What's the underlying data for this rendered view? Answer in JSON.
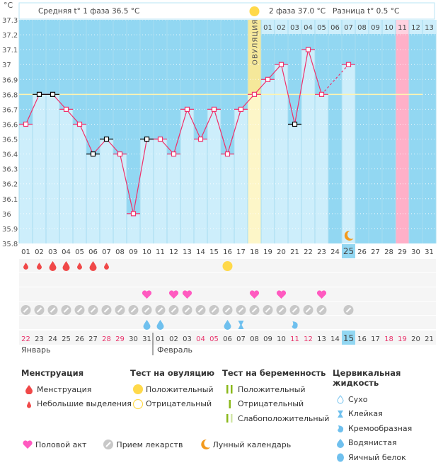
{
  "header": {
    "unit": "°C",
    "phase1": "Средняя t° 1 фаза 36.5 °C",
    "phase2": "2 фаза 37.0 °C",
    "diff": "Разница t° 0.5 °C",
    "ovulation_label": "ОВУЛЯЦИЯ"
  },
  "chart_data": {
    "type": "line",
    "title": "",
    "xlabel": "",
    "ylabel": "°C",
    "ylim": [
      35.8,
      37.3
    ],
    "yticks": [
      "35.8",
      "35.9",
      "36",
      "36.1",
      "36.2",
      "36.3",
      "36.4",
      "36.5",
      "36.6",
      "36.7",
      "36.8",
      "36.9",
      "37",
      "37.1",
      "37.2",
      "37.3"
    ],
    "cycle_days": [
      "01",
      "02",
      "03",
      "04",
      "05",
      "06",
      "07",
      "08",
      "09",
      "10",
      "11",
      "12",
      "13",
      "14",
      "15",
      "16",
      "17",
      "18",
      "19",
      "20",
      "21",
      "22",
      "23",
      "24",
      "25",
      "26",
      "27",
      "28",
      "29",
      "30",
      "31"
    ],
    "temperatures": [
      36.6,
      36.8,
      36.8,
      36.7,
      36.6,
      36.4,
      36.5,
      36.4,
      36.0,
      36.5,
      36.5,
      36.4,
      36.7,
      36.5,
      36.7,
      36.4,
      36.7,
      36.8,
      36.9,
      37.0,
      36.6,
      37.1,
      36.8,
      null,
      37.0
    ],
    "marked_black_days": [
      2,
      3,
      6,
      7,
      10,
      21
    ],
    "dashed_segment": [
      23,
      25
    ],
    "coverline": 36.8,
    "ovulation_day": 18,
    "phase2_days": [
      "01",
      "02",
      "03",
      "04",
      "05",
      "06",
      "07",
      "08",
      "09",
      "10",
      "11",
      "12",
      "13"
    ],
    "highlight_day": 29,
    "today_day": 25,
    "moon_day": 25
  },
  "calendar": {
    "dates": [
      "22",
      "23",
      "24",
      "25",
      "26",
      "27",
      "28",
      "29",
      "30",
      "31",
      "01",
      "02",
      "03",
      "04",
      "05",
      "06",
      "07",
      "08",
      "09",
      "10",
      "11",
      "12",
      "13",
      "14",
      "15",
      "16",
      "17",
      "18",
      "19",
      "20",
      "21"
    ],
    "weekend_indices": [
      0,
      6,
      7,
      13,
      14,
      20,
      21,
      27,
      28
    ],
    "today_index": 24,
    "month1": "Январь",
    "month2": "Февраль",
    "month_split_index": 10
  },
  "rows": {
    "menstruation": [
      [
        "s",
        0
      ],
      [
        "s",
        1
      ],
      [
        "l",
        2
      ],
      [
        "l",
        3
      ],
      [
        "s",
        4
      ],
      [
        "l",
        5
      ],
      [
        "s",
        6
      ]
    ],
    "ovulation_test_positive": [
      15
    ],
    "intercourse": [
      9,
      11,
      12,
      17,
      19,
      22
    ],
    "medication": [
      0,
      1,
      2,
      3,
      4,
      5,
      6,
      7,
      8,
      9,
      10,
      11,
      12,
      13,
      14,
      15,
      16,
      17,
      18,
      19,
      20,
      21,
      22,
      24
    ],
    "fluid": [
      [
        "water",
        9
      ],
      [
        "water",
        10
      ],
      [
        "water",
        15
      ],
      [
        "sticky",
        16
      ],
      [
        "creamy",
        20
      ]
    ]
  },
  "legend": {
    "menstruation": {
      "title": "Менструация",
      "items": [
        "Менструация",
        "Небольшие выделения"
      ]
    },
    "ovulation_test": {
      "title": "Тест на овуляцию",
      "items": [
        "Положительный",
        "Отрицательный"
      ]
    },
    "pregnancy_test": {
      "title": "Тест на беременность",
      "items": [
        "Положительный",
        "Отрицательный",
        "Слабоположительный"
      ]
    },
    "cervical_fluid": {
      "title": "Цервикальная жидкость",
      "items": [
        "Сухо",
        "Клейкая",
        "Кремообразная",
        "Водянистая",
        "Яичный белок"
      ]
    },
    "bottom": [
      "Половой акт",
      "Прием лекарств",
      "Лунный календарь"
    ]
  },
  "colors": {
    "bg_blue": "#92d7f2",
    "bar": "#cdeefb",
    "line": "#f0306a",
    "ovulation": "#f5e89a",
    "pink": "#ffb0c8",
    "weekend": "#e8336b",
    "drop": "#f04848",
    "heart": "#ff5ac0",
    "pill": "#c8c8c8",
    "fluid": "#6fc0ee",
    "sun": "#ffd94a",
    "moon": "#f39a1c",
    "green": "#8ab81a"
  }
}
